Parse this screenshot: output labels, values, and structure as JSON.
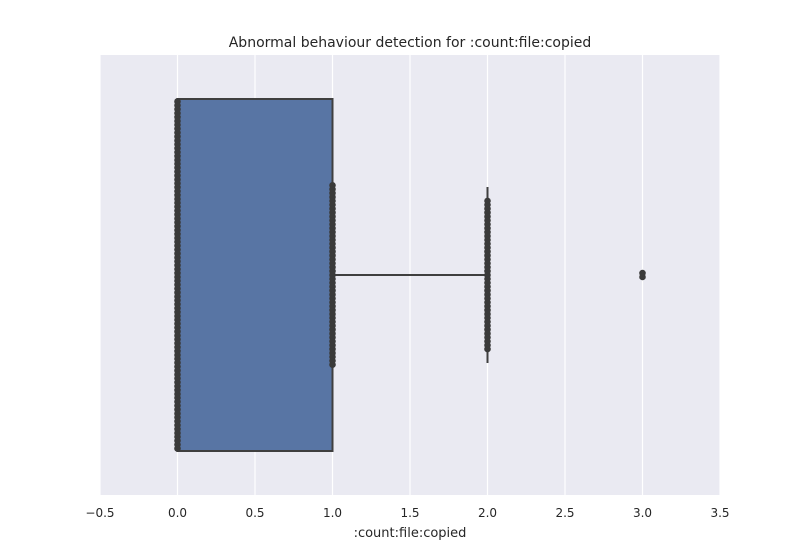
{
  "chart_data": {
    "type": "box",
    "title": "Abnormal behaviour detection for :count:file:copied",
    "xlabel": ":count:file:copied",
    "ylabel": "",
    "xlim": [
      -0.5,
      3.5
    ],
    "xticks": [
      -0.5,
      0.0,
      0.5,
      1.0,
      1.5,
      2.0,
      2.5,
      3.0,
      3.5
    ],
    "xtick_labels": [
      "−0.5",
      "0.0",
      "0.5",
      "1.0",
      "1.5",
      "2.0",
      "2.5",
      "3.0",
      "3.5"
    ],
    "grid": true,
    "orientation": "horizontal",
    "box": {
      "q1": 0.0,
      "median": 0.0,
      "q3": 1.0,
      "whisker_low": 0.0,
      "whisker_high": 2.0,
      "color": "#5875a4"
    },
    "swarm": [
      {
        "x": 0.0,
        "count": 90
      },
      {
        "x": 1.0,
        "count": 47
      },
      {
        "x": 2.0,
        "count": 39
      },
      {
        "x": 3.0,
        "count": 2
      }
    ],
    "colors": {
      "background": "#eaeaf2",
      "grid": "#ffffff",
      "box_fill": "#5875a4",
      "box_edge": "#3f3f3f",
      "points": "#3a3a3a"
    }
  }
}
